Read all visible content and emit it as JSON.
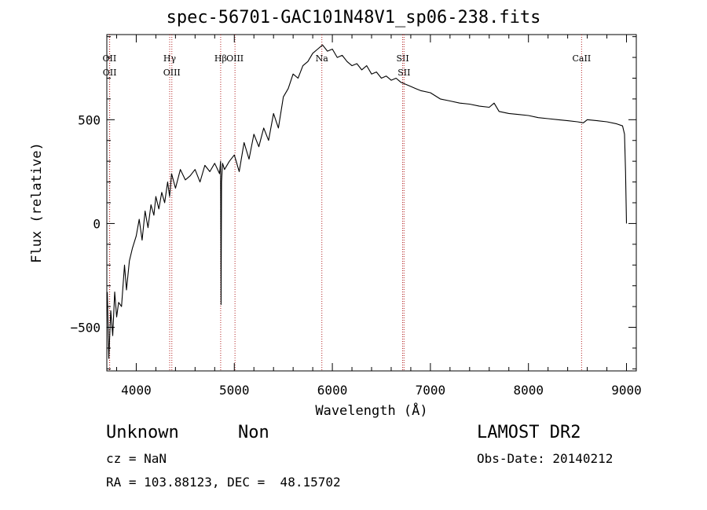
{
  "chart_data": {
    "type": "line",
    "title": "spec-56701-GAC101N48V1_sp06-238.fits",
    "xlabel": "Wavelength (Å)",
    "ylabel": "Flux (relative)",
    "xlim": [
      3700,
      9100
    ],
    "ylim": [
      -710,
      910
    ],
    "x_ticks": [
      4000,
      5000,
      6000,
      7000,
      8000,
      9000
    ],
    "x_tick_labels": [
      "4000",
      "5000",
      "6000",
      "7000",
      "8000",
      "9000"
    ],
    "y_ticks": [
      -500,
      0,
      500
    ],
    "y_tick_labels": [
      "−500",
      "0",
      "500"
    ],
    "grid": false,
    "series": [
      {
        "x": [
          3705,
          3720,
          3740,
          3760,
          3780,
          3800,
          3820,
          3850,
          3880,
          3900,
          3930,
          3960,
          4000,
          4030,
          4060,
          4090,
          4120,
          4150,
          4180,
          4200,
          4230,
          4260,
          4290,
          4320,
          4340,
          4360,
          4400,
          4450,
          4500,
          4550,
          4600,
          4650,
          4700,
          4750,
          4800,
          4850,
          4860,
          4865,
          4870,
          4880,
          4900,
          4950,
          5000,
          5050,
          5100,
          5150,
          5200,
          5250,
          5300,
          5350,
          5400,
          5450,
          5500,
          5550,
          5600,
          5650,
          5700,
          5750,
          5800,
          5850,
          5900,
          5950,
          6000,
          6050,
          6100,
          6150,
          6200,
          6250,
          6300,
          6350,
          6400,
          6450,
          6500,
          6550,
          6600,
          6650,
          6700,
          6750,
          6800,
          6850,
          6900,
          7000,
          7100,
          7200,
          7300,
          7400,
          7500,
          7600,
          7650,
          7700,
          7800,
          7900,
          8000,
          8100,
          8200,
          8300,
          8400,
          8500,
          8560,
          8600,
          8700,
          8800,
          8900,
          8960,
          8980,
          8990,
          9000
        ],
        "y": [
          -330,
          -650,
          -420,
          -540,
          -330,
          -450,
          -380,
          -400,
          -200,
          -320,
          -180,
          -120,
          -60,
          20,
          -80,
          60,
          -20,
          90,
          40,
          130,
          70,
          150,
          100,
          200,
          130,
          240,
          170,
          260,
          210,
          230,
          260,
          200,
          280,
          250,
          290,
          240,
          300,
          -390,
          200,
          290,
          260,
          300,
          330,
          250,
          390,
          310,
          430,
          370,
          460,
          400,
          530,
          460,
          610,
          650,
          720,
          700,
          760,
          780,
          820,
          840,
          860,
          830,
          840,
          800,
          810,
          780,
          760,
          770,
          740,
          760,
          720,
          730,
          700,
          710,
          690,
          700,
          680,
          670,
          660,
          650,
          640,
          630,
          600,
          590,
          580,
          575,
          565,
          560,
          580,
          540,
          530,
          525,
          520,
          510,
          505,
          500,
          495,
          490,
          485,
          500,
          495,
          490,
          480,
          470,
          430,
          250,
          0
        ]
      }
    ],
    "line_markers": [
      {
        "label": "OII",
        "wavelength": 3727
      },
      {
        "label": "OII",
        "wavelength": 3729
      },
      {
        "label": "Hγ",
        "wavelength": 4341
      },
      {
        "label": "OIII",
        "wavelength": 4363
      },
      {
        "label": "Hβ",
        "wavelength": 4861
      },
      {
        "label": "OIII",
        "wavelength": 5007
      },
      {
        "label": "Na",
        "wavelength": 5893
      },
      {
        "label": "SII",
        "wavelength": 6717
      },
      {
        "label": "SII",
        "wavelength": 6731
      },
      {
        "label": "CaII",
        "wavelength": 8542
      }
    ],
    "line_color": "#000000",
    "marker_color": "#b22222"
  },
  "info": {
    "object_class": "Unknown",
    "subclass": "Non",
    "survey": "LAMOST DR2",
    "cz": "cz = NaN",
    "obs_date": "Obs-Date: 20140212",
    "coords": "RA = 103.88123, DEC =  48.15702"
  }
}
